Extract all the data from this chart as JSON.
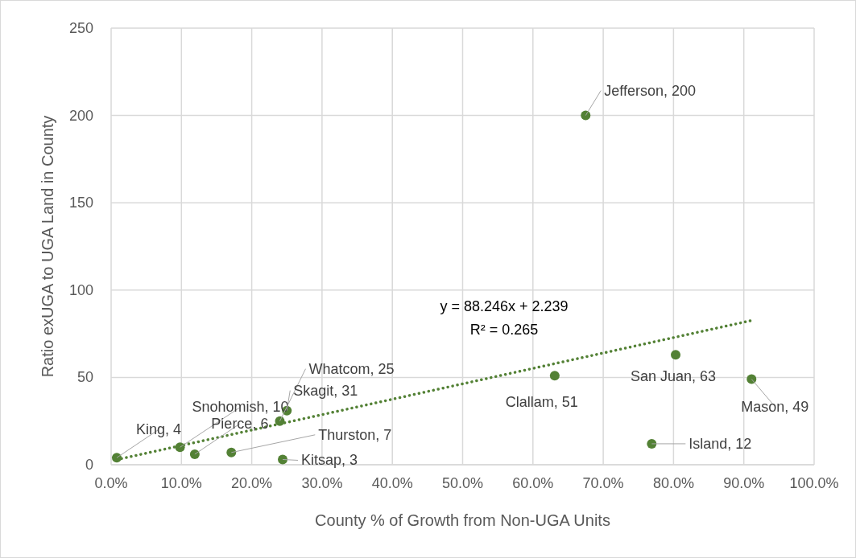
{
  "chart_data": {
    "type": "scatter",
    "xlabel": "County % of Growth from Non-UGA Units",
    "ylabel": "Ratio exUGA to UGA Land in County",
    "x": [
      0.8,
      9.8,
      11.9,
      17.1,
      24.0,
      25.0,
      24.4,
      63.1,
      67.5,
      80.3,
      91.1,
      76.9
    ],
    "series": [
      {
        "color": "#538135",
        "values": [
          4,
          10,
          6,
          7,
          25,
          31,
          3,
          51,
          200,
          63,
          49,
          12
        ],
        "value_labels": [
          "King, 4",
          "Snohomish, 10",
          "Pierce, 6",
          "Thurston, 7",
          "Whatcom, 25",
          "Skagit, 31",
          "Kitsap, 3",
          "Clallam, 51",
          "Jefferson, 200",
          "San Juan, 63",
          "Mason, 49",
          "Island, 12"
        ],
        "marker": "circle"
      },
      {
        "type": "line",
        "color": "#538135",
        "x": [
          0.8,
          91.1
        ],
        "values": [
          2.9,
          82.6
        ],
        "line_style": "dotted",
        "marker": "none"
      }
    ],
    "annotations": [
      "y = 88.246x + 2.239",
      "R² = 0.265"
    ],
    "xlim": [
      0,
      100
    ],
    "xticks": [
      {
        "value": 0,
        "label": "0.0%"
      },
      {
        "value": 10,
        "label": "10.0%"
      },
      {
        "value": 20,
        "label": "20.0%"
      },
      {
        "value": 30,
        "label": "30.0%"
      },
      {
        "value": 40,
        "label": "40.0%"
      },
      {
        "value": 50,
        "label": "50.0%"
      },
      {
        "value": 60,
        "label": "60.0%"
      },
      {
        "value": 70,
        "label": "70.0%"
      },
      {
        "value": 80,
        "label": "80.0%"
      },
      {
        "value": 90,
        "label": "90.0%"
      },
      {
        "value": 100,
        "label": "100.0%"
      }
    ],
    "ylim": [
      0,
      250
    ],
    "yticks": [
      0,
      50,
      100,
      150,
      200,
      250
    ],
    "grid": true
  }
}
